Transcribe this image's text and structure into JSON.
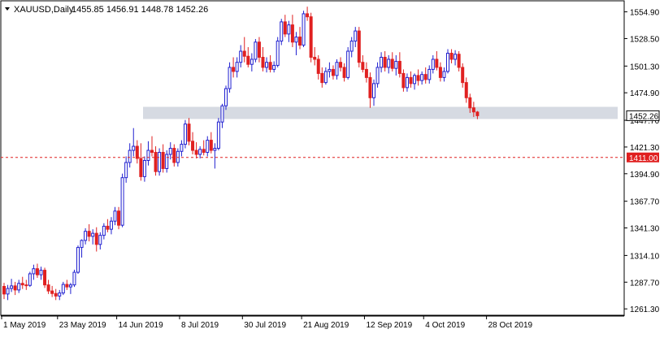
{
  "header": {
    "symbol": "XAUUSD,Daily",
    "ohlc": "1455.85 1456.91 1448.78 1452.26"
  },
  "colors": {
    "up": "#2020d0",
    "down": "#e02020",
    "grid": "#000000",
    "zone": "#c8cdd8",
    "hline": "#e02020",
    "price_tag_bg": "#ffffff",
    "level_tag_bg": "#e02020"
  },
  "chart_data": {
    "type": "candlestick",
    "y_range": [
      1255,
      1565
    ],
    "y_ticks": [
      "1554.90",
      "1528.50",
      "1501.30",
      "1474.90",
      "1447.70",
      "1421.30",
      "1394.90",
      "1367.70",
      "1341.30",
      "1314.10",
      "1287.70",
      "1261.30"
    ],
    "x_ticks": [
      "1 May 2019",
      "23 May 2019",
      "14 Jun 2019",
      "8 Jul 2019",
      "30 Jul 2019",
      "21 Aug 2019",
      "12 Sep 2019",
      "4 Oct 2019",
      "28 Oct 2019"
    ],
    "current_price": "1452.26",
    "horizontal_level": "1411.00",
    "zone": [
      1449,
      1461
    ],
    "candles": [
      [
        1283.5,
        1287.0,
        1271.0,
        1276.0
      ],
      [
        1276.0,
        1285.0,
        1270.0,
        1281.5
      ],
      [
        1281.5,
        1291.0,
        1278.0,
        1284.0
      ],
      [
        1284.0,
        1288.0,
        1275.0,
        1280.0
      ],
      [
        1280.0,
        1290.0,
        1277.0,
        1286.5
      ],
      [
        1286.5,
        1293.0,
        1281.0,
        1285.0
      ],
      [
        1285.0,
        1290.0,
        1280.0,
        1284.5
      ],
      [
        1284.5,
        1298.0,
        1283.0,
        1296.0
      ],
      [
        1296.0,
        1305.0,
        1290.0,
        1301.0
      ],
      [
        1301.0,
        1306.0,
        1292.0,
        1295.0
      ],
      [
        1295.0,
        1303.0,
        1290.0,
        1299.5
      ],
      [
        1299.5,
        1302.0,
        1282.0,
        1285.0
      ],
      [
        1285.0,
        1290.0,
        1276.0,
        1279.0
      ],
      [
        1279.0,
        1284.0,
        1273.0,
        1276.5
      ],
      [
        1276.5,
        1281.0,
        1270.0,
        1274.0
      ],
      [
        1274.0,
        1280.0,
        1270.0,
        1277.0
      ],
      [
        1277.0,
        1288.0,
        1275.0,
        1285.5
      ],
      [
        1285.5,
        1290.0,
        1280.0,
        1283.0
      ],
      [
        1283.0,
        1287.0,
        1276.0,
        1285.0
      ],
      [
        1285.0,
        1300.0,
        1283.0,
        1297.5
      ],
      [
        1297.5,
        1324.0,
        1296.0,
        1322.0
      ],
      [
        1322.0,
        1330.0,
        1312.0,
        1329.0
      ],
      [
        1329.0,
        1341.0,
        1325.0,
        1338.0
      ],
      [
        1338.0,
        1345.0,
        1328.0,
        1333.0
      ],
      [
        1333.0,
        1340.0,
        1325.0,
        1336.0
      ],
      [
        1336.0,
        1342.0,
        1318.0,
        1325.0
      ],
      [
        1325.0,
        1337.0,
        1320.0,
        1334.0
      ],
      [
        1334.0,
        1346.0,
        1330.0,
        1343.0
      ],
      [
        1343.0,
        1350.0,
        1337.0,
        1340.0
      ],
      [
        1340.0,
        1352.0,
        1335.0,
        1348.0
      ],
      [
        1348.0,
        1362.0,
        1344.0,
        1358.0
      ],
      [
        1358.0,
        1362.0,
        1340.0,
        1344.0
      ],
      [
        1344.0,
        1395.0,
        1342.0,
        1391.0
      ],
      [
        1391.0,
        1412.0,
        1386.0,
        1406.0
      ],
      [
        1406.0,
        1425.0,
        1401.0,
        1418.0
      ],
      [
        1418.0,
        1440.0,
        1412.0,
        1422.0
      ],
      [
        1422.0,
        1428.0,
        1405.0,
        1410.0
      ],
      [
        1410.0,
        1425.0,
        1388.0,
        1392.0
      ],
      [
        1392.0,
        1412.0,
        1387.0,
        1408.0
      ],
      [
        1408.0,
        1427.0,
        1403.0,
        1418.0
      ],
      [
        1418.0,
        1432.0,
        1412.0,
        1416.0
      ],
      [
        1416.0,
        1422.0,
        1393.0,
        1397.0
      ],
      [
        1397.0,
        1420.0,
        1393.0,
        1416.0
      ],
      [
        1416.0,
        1424.0,
        1396.0,
        1400.0
      ],
      [
        1400.0,
        1418.0,
        1396.0,
        1414.0
      ],
      [
        1414.0,
        1426.0,
        1409.0,
        1420.0
      ],
      [
        1420.0,
        1424.0,
        1402.0,
        1406.0
      ],
      [
        1406.0,
        1420.0,
        1402.0,
        1417.0
      ],
      [
        1417.0,
        1428.0,
        1412.0,
        1424.0
      ],
      [
        1424.0,
        1448.0,
        1420.0,
        1444.0
      ],
      [
        1444.0,
        1450.0,
        1423.0,
        1427.0
      ],
      [
        1427.0,
        1436.0,
        1414.0,
        1418.0
      ],
      [
        1418.0,
        1426.0,
        1410.0,
        1414.0
      ],
      [
        1414.0,
        1422.0,
        1410.0,
        1419.0
      ],
      [
        1419.0,
        1428.0,
        1413.0,
        1416.0
      ],
      [
        1416.0,
        1432.0,
        1412.0,
        1428.0
      ],
      [
        1428.0,
        1436.0,
        1415.0,
        1418.0
      ],
      [
        1418.0,
        1425.0,
        1400.0,
        1420.0
      ],
      [
        1420.0,
        1450.0,
        1418.0,
        1446.0
      ],
      [
        1446.0,
        1464.0,
        1440.0,
        1462.0
      ],
      [
        1462.0,
        1482.0,
        1458.0,
        1479.0
      ],
      [
        1479.0,
        1505.0,
        1475.0,
        1500.0
      ],
      [
        1500.0,
        1510.0,
        1490.0,
        1496.0
      ],
      [
        1496.0,
        1510.0,
        1490.0,
        1505.0
      ],
      [
        1505.0,
        1522.0,
        1500.0,
        1516.0
      ],
      [
        1516.0,
        1530.0,
        1505.0,
        1511.0
      ],
      [
        1511.0,
        1520.0,
        1500.0,
        1503.0
      ],
      [
        1503.0,
        1514.0,
        1496.0,
        1508.0
      ],
      [
        1508.0,
        1528.0,
        1505.0,
        1525.0
      ],
      [
        1525.0,
        1530.0,
        1505.0,
        1510.0
      ],
      [
        1510.0,
        1520.0,
        1496.0,
        1500.0
      ],
      [
        1500.0,
        1510.0,
        1495.0,
        1505.0
      ],
      [
        1505.0,
        1512.0,
        1495.0,
        1498.0
      ],
      [
        1498.0,
        1506.0,
        1495.0,
        1502.0
      ],
      [
        1502.0,
        1530.0,
        1500.0,
        1526.0
      ],
      [
        1526.0,
        1548.0,
        1522.0,
        1545.0
      ],
      [
        1545.0,
        1552.0,
        1530.0,
        1533.0
      ],
      [
        1533.0,
        1546.0,
        1525.0,
        1542.0
      ],
      [
        1542.0,
        1552.0,
        1520.0,
        1525.0
      ],
      [
        1525.0,
        1535.0,
        1512.0,
        1530.0
      ],
      [
        1530.0,
        1540.0,
        1518.0,
        1522.0
      ],
      [
        1522.0,
        1556.0,
        1520.0,
        1553.0
      ],
      [
        1553.0,
        1560.0,
        1546.0,
        1550.0
      ],
      [
        1550.0,
        1554.0,
        1505.0,
        1510.0
      ],
      [
        1510.0,
        1520.0,
        1502.0,
        1508.0
      ],
      [
        1508.0,
        1512.0,
        1488.0,
        1494.0
      ],
      [
        1494.0,
        1500.0,
        1480.0,
        1485.0
      ],
      [
        1485.0,
        1500.0,
        1483.0,
        1496.0
      ],
      [
        1496.0,
        1505.0,
        1490.0,
        1498.0
      ],
      [
        1498.0,
        1502.0,
        1488.0,
        1492.0
      ],
      [
        1492.0,
        1508.0,
        1488.0,
        1505.0
      ],
      [
        1505.0,
        1510.0,
        1496.0,
        1500.0
      ],
      [
        1500.0,
        1504.0,
        1486.0,
        1490.0
      ],
      [
        1490.0,
        1520.0,
        1488.0,
        1516.0
      ],
      [
        1516.0,
        1530.0,
        1510.0,
        1526.0
      ],
      [
        1526.0,
        1540.0,
        1520.0,
        1536.0
      ],
      [
        1536.0,
        1540.0,
        1500.0,
        1505.0
      ],
      [
        1505.0,
        1512.0,
        1495.0,
        1498.0
      ],
      [
        1498.0,
        1505.0,
        1485.0,
        1490.0
      ],
      [
        1490.0,
        1495.0,
        1460.0,
        1470.0
      ],
      [
        1470.0,
        1488.0,
        1462.0,
        1484.0
      ],
      [
        1484.0,
        1505.0,
        1480.0,
        1500.0
      ],
      [
        1500.0,
        1515.0,
        1495.0,
        1510.0
      ],
      [
        1510.0,
        1516.0,
        1496.0,
        1500.0
      ],
      [
        1500.0,
        1512.0,
        1494.0,
        1508.0
      ],
      [
        1508.0,
        1515.0,
        1496.0,
        1499.0
      ],
      [
        1499.0,
        1512.0,
        1492.0,
        1506.0
      ],
      [
        1506.0,
        1515.0,
        1490.0,
        1494.0
      ],
      [
        1494.0,
        1498.0,
        1476.0,
        1480.0
      ],
      [
        1480.0,
        1494.0,
        1476.0,
        1490.0
      ],
      [
        1490.0,
        1496.0,
        1480.0,
        1484.0
      ],
      [
        1484.0,
        1494.0,
        1478.0,
        1492.0
      ],
      [
        1492.0,
        1498.0,
        1482.0,
        1487.0
      ],
      [
        1487.0,
        1496.0,
        1483.0,
        1493.0
      ],
      [
        1493.0,
        1500.0,
        1484.0,
        1488.0
      ],
      [
        1488.0,
        1502.0,
        1484.0,
        1498.0
      ],
      [
        1498.0,
        1512.0,
        1494.0,
        1508.0
      ],
      [
        1508.0,
        1516.0,
        1497.0,
        1500.0
      ],
      [
        1500.0,
        1505.0,
        1486.0,
        1490.0
      ],
      [
        1490.0,
        1500.0,
        1486.0,
        1496.0
      ],
      [
        1496.0,
        1518.0,
        1494.0,
        1514.0
      ],
      [
        1514.0,
        1518.0,
        1504.0,
        1508.0
      ],
      [
        1508.0,
        1517.0,
        1502.0,
        1513.0
      ],
      [
        1513.0,
        1516.0,
        1496.0,
        1500.0
      ],
      [
        1500.0,
        1504.0,
        1480.0,
        1485.0
      ],
      [
        1485.0,
        1490.0,
        1465.0,
        1470.0
      ],
      [
        1470.0,
        1474.0,
        1455.0,
        1460.0
      ],
      [
        1460.0,
        1466.0,
        1451.0,
        1456.0
      ],
      [
        1455.85,
        1456.91,
        1448.78,
        1452.26
      ]
    ]
  }
}
